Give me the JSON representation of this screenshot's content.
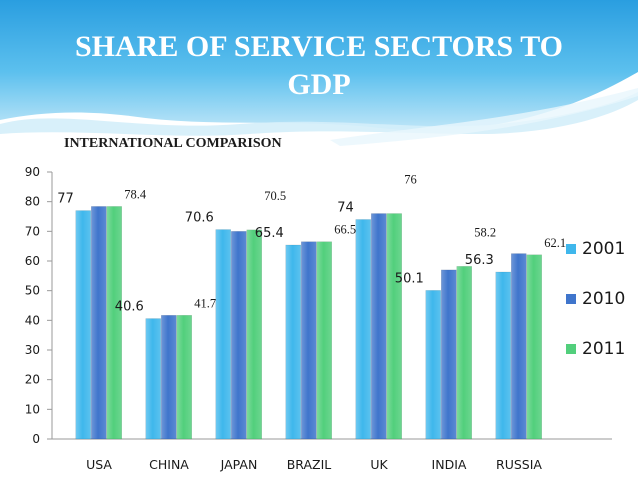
{
  "page": {
    "title_lines": [
      "SHARE OF SERVICE SECTORS TO",
      "GDP"
    ],
    "subtitle": "INTERNATIONAL COMPARISON"
  },
  "chart_data": {
    "type": "bar",
    "title": "SHARE OF SERVICE SECTORS TO GDP",
    "subtitle": "INTERNATIONAL COMPARISON",
    "xlabel": "",
    "ylabel": "",
    "ylim": [
      0,
      90
    ],
    "yticks": [
      0,
      10,
      20,
      30,
      40,
      50,
      60,
      70,
      80,
      90
    ],
    "grid": false,
    "legend_position": "right",
    "categories": [
      "USA",
      "CHINA",
      "JAPAN",
      "BRAZIL",
      "UK",
      "INDIA",
      "RUSSIA"
    ],
    "series": [
      {
        "name": "2001",
        "color": "#3fb7ec",
        "values": [
          77,
          40.6,
          70.6,
          65.4,
          74,
          50.1,
          56.3
        ]
      },
      {
        "name": "2010",
        "color": "#3f75cc",
        "values": [
          78.4,
          41.7,
          70,
          66.5,
          76,
          57,
          62.5
        ]
      },
      {
        "name": "2011",
        "color": "#52cf7c",
        "values": [
          78.4,
          41.7,
          70.5,
          66.5,
          76,
          58.2,
          62.1
        ]
      }
    ],
    "data_labels": [
      {
        "text": "77",
        "category": "USA",
        "series": "2001",
        "style": "sans"
      },
      {
        "text": "78.4",
        "category": "USA",
        "series": "2011",
        "style": "serif"
      },
      {
        "text": "40.6",
        "category": "CHINA",
        "series": "2001",
        "style": "sans"
      },
      {
        "text": "41.7",
        "category": "CHINA",
        "series": "2011",
        "style": "serif"
      },
      {
        "text": "70.6",
        "category": "JAPAN",
        "series": "2001",
        "style": "sans"
      },
      {
        "text": "70.5",
        "category": "JAPAN",
        "series": "2011",
        "style": "serif",
        "raised": true
      },
      {
        "text": "65.4",
        "category": "BRAZIL",
        "series": "2001",
        "style": "sans"
      },
      {
        "text": "66.5",
        "category": "BRAZIL",
        "series": "2011",
        "style": "serif"
      },
      {
        "text": "74",
        "category": "UK",
        "series": "2001",
        "style": "sans"
      },
      {
        "text": "76",
        "category": "UK",
        "series": "2011",
        "style": "serif",
        "raised": true
      },
      {
        "text": "50.1",
        "category": "INDIA",
        "series": "2001",
        "style": "sans"
      },
      {
        "text": "58.2",
        "category": "INDIA",
        "series": "2011",
        "style": "serif",
        "raised": true
      },
      {
        "text": "56.3",
        "category": "RUSSIA",
        "series": "2001",
        "style": "sans"
      },
      {
        "text": "62.1",
        "category": "RUSSIA",
        "series": "2011",
        "style": "serif"
      }
    ]
  }
}
